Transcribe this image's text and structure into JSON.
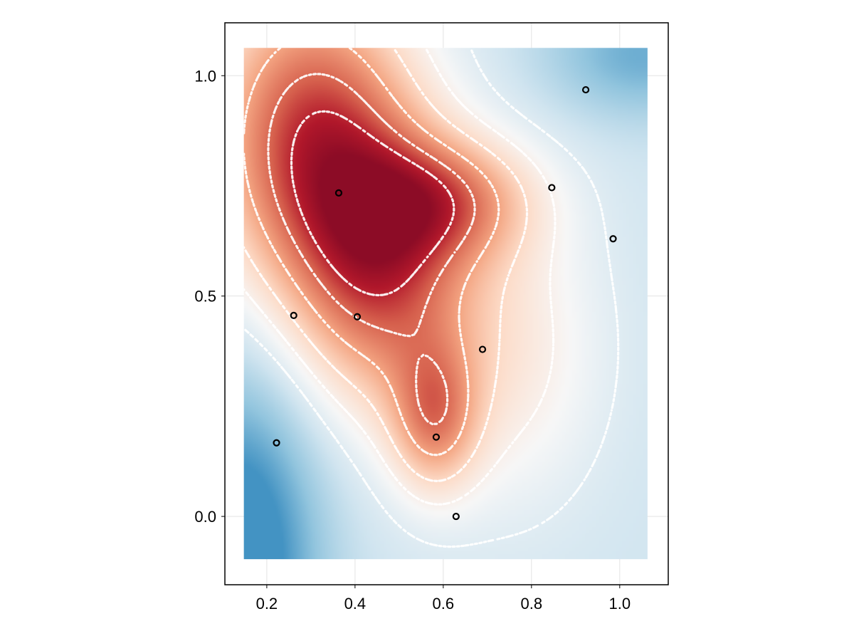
{
  "chart_data": {
    "type": "heatmap",
    "title": "",
    "xlabel": "",
    "ylabel": "",
    "xlim": [
      0.105,
      1.11
    ],
    "ylim": [
      -0.155,
      1.12
    ],
    "grid": true,
    "colormap": "RdBu (reversed)",
    "x_ticks": [
      {
        "value": 0.2,
        "label": "0.2"
      },
      {
        "value": 0.4,
        "label": "0.4"
      },
      {
        "value": 0.6,
        "label": "0.6"
      },
      {
        "value": 0.8,
        "label": "0.8"
      },
      {
        "value": 1.0,
        "label": "1.0"
      }
    ],
    "y_ticks": [
      {
        "value": 0.0,
        "label": "0.0"
      },
      {
        "value": 0.5,
        "label": "0.5"
      },
      {
        "value": 1.0,
        "label": "1.0"
      }
    ],
    "heatmap_extent": {
      "x": [
        0.148,
        1.063
      ],
      "y": [
        -0.097,
        1.063
      ]
    },
    "points": [
      {
        "x": 0.222,
        "y": 0.167
      },
      {
        "x": 0.261,
        "y": 0.456
      },
      {
        "x": 0.363,
        "y": 0.734
      },
      {
        "x": 0.405,
        "y": 0.453
      },
      {
        "x": 0.584,
        "y": 0.18
      },
      {
        "x": 0.629,
        "y": 0.0
      },
      {
        "x": 0.689,
        "y": 0.379
      },
      {
        "x": 0.846,
        "y": 0.746
      },
      {
        "x": 0.923,
        "y": 0.968
      },
      {
        "x": 0.985,
        "y": 0.63
      }
    ],
    "contour_style": "white dotted",
    "point_style": "black open circle"
  }
}
